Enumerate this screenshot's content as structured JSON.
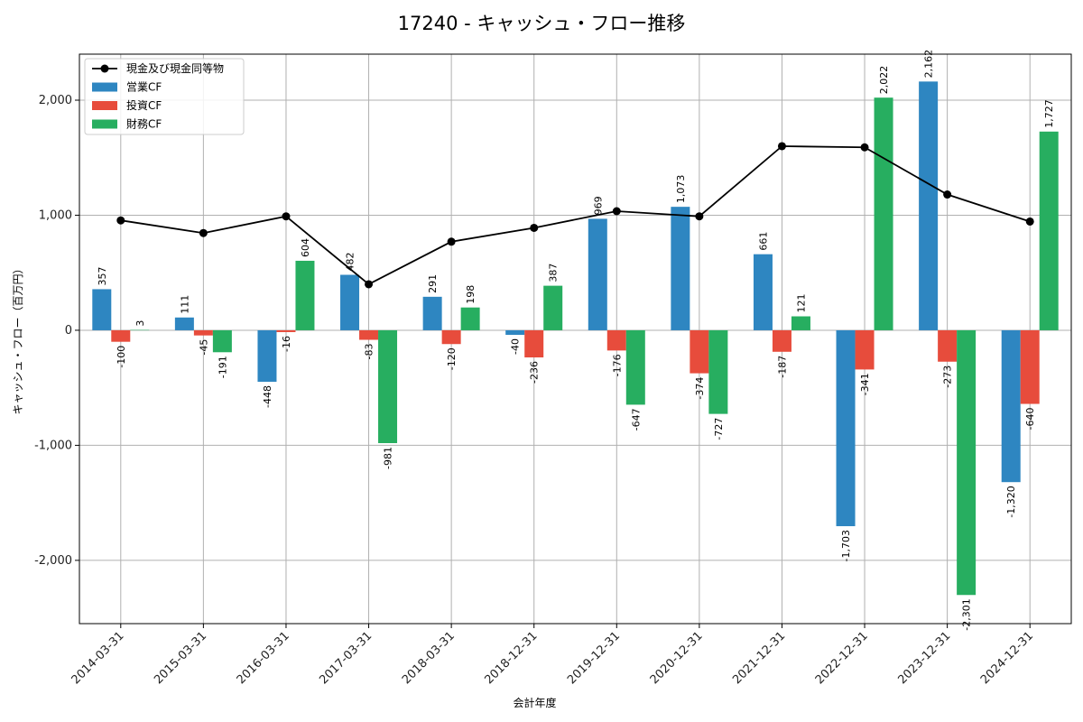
{
  "chart_data": {
    "type": "bar",
    "title": "17240 - キャッシュ・フロー推移",
    "xlabel": "会計年度",
    "ylabel": "キャッシュ・フロー（百万円）",
    "ylim": [
      -2550,
      2400
    ],
    "yticks": [
      -2000,
      -1000,
      0,
      1000,
      2000
    ],
    "ytick_labels": [
      "-2,000",
      "-1,000",
      "0",
      "1,000",
      "2,000"
    ],
    "grid": true,
    "legend_position": "top-left",
    "categories": [
      "2014-03-31",
      "2015-03-31",
      "2016-03-31",
      "2017-03-31",
      "2018-03-31",
      "2018-12-31",
      "2019-12-31",
      "2020-12-31",
      "2021-12-31",
      "2022-12-31",
      "2023-12-31",
      "2024-12-31"
    ],
    "series": [
      {
        "name": "営業CF",
        "kind": "bar",
        "color": "#2e86c1",
        "values": [
          357,
          111,
          -448,
          482,
          291,
          -40,
          969,
          1073,
          661,
          -1703,
          2162,
          -1320
        ],
        "labels": [
          "357",
          "111",
          "-448",
          "482",
          "291",
          "-40",
          "969",
          "1,073",
          "661",
          "-1,703",
          "2,162",
          "-1,320"
        ]
      },
      {
        "name": "投資CF",
        "kind": "bar",
        "color": "#e74c3c",
        "values": [
          -100,
          -45,
          -16,
          -83,
          -120,
          -236,
          -176,
          -374,
          -187,
          -341,
          -273,
          -640
        ],
        "labels": [
          "-100",
          "-45",
          "-16",
          "-83",
          "-120",
          "-236",
          "-176",
          "-374",
          "-187",
          "-341",
          "-273",
          "-640"
        ]
      },
      {
        "name": "財務CF",
        "kind": "bar",
        "color": "#27ae60",
        "values": [
          3,
          -191,
          604,
          -981,
          198,
          387,
          -647,
          -727,
          121,
          2022,
          -2301,
          1727
        ],
        "labels": [
          "3",
          "-191",
          "604",
          "-981",
          "198",
          "387",
          "-647",
          "-727",
          "121",
          "2,022",
          "-2,301",
          "1,727"
        ]
      },
      {
        "name": "現金及び現金同等物",
        "kind": "line",
        "color": "#000000",
        "values": [
          955,
          845,
          990,
          400,
          770,
          890,
          1035,
          990,
          1600,
          1590,
          1180,
          945
        ]
      }
    ]
  }
}
